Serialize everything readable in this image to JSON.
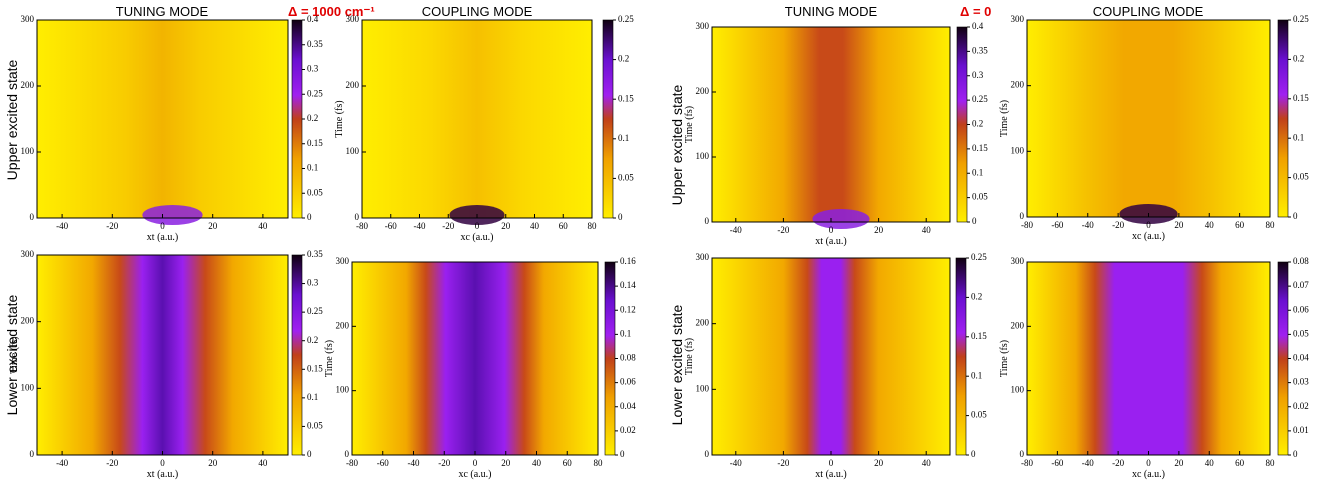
{
  "column_titles": [
    "TUNING MODE",
    "COUPLING MODE",
    "TUNING MODE",
    "COUPLING MODE"
  ],
  "delta_labels": [
    "Δ = 1000 cm⁻¹",
    "Δ = 0"
  ],
  "row_labels": [
    "Upper excited state",
    "Lower excited state",
    "Upper excited state",
    "Lower excited state"
  ],
  "chart_data": [
    {
      "type": "heatmap",
      "xlabel": "xt (a.u.)",
      "xlim": [
        -50,
        50
      ],
      "xticks": [
        -40,
        -20,
        0,
        20,
        40
      ],
      "ylim": [
        0,
        300
      ],
      "yticks": [
        0,
        100,
        200,
        300
      ],
      "clim": [
        0,
        0.4
      ],
      "cticks": [
        0,
        0.05,
        0.1,
        0.15,
        0.2,
        0.25,
        0.3,
        0.35,
        0.4
      ]
    },
    {
      "type": "heatmap",
      "xlabel": "xc (a.u.)",
      "ylabel": "Time (fs)",
      "xlim": [
        -80,
        80
      ],
      "xticks": [
        -80,
        -60,
        -40,
        -20,
        0,
        20,
        40,
        60,
        80
      ],
      "ylim": [
        0,
        300
      ],
      "yticks": [
        0,
        100,
        200,
        300
      ],
      "clim": [
        0,
        0.25
      ],
      "cticks": [
        0,
        0.05,
        0.1,
        0.15,
        0.2,
        0.25
      ]
    },
    {
      "type": "heatmap",
      "xlabel": "xt (a.u.)",
      "ylabel": "Time (fs)",
      "xlim": [
        -50,
        50
      ],
      "xticks": [
        -40,
        -20,
        0,
        20,
        40
      ],
      "ylim": [
        0,
        300
      ],
      "yticks": [
        0,
        100,
        200,
        300
      ],
      "clim": [
        0,
        0.35
      ],
      "cticks": [
        0,
        0.05,
        0.1,
        0.15,
        0.2,
        0.25,
        0.3,
        0.35
      ]
    },
    {
      "type": "heatmap",
      "xlabel": "xc (a.u.)",
      "ylabel": "Time (fs)",
      "xlim": [
        -80,
        80
      ],
      "xticks": [
        -80,
        -60,
        -40,
        -20,
        0,
        20,
        40,
        60,
        80
      ],
      "ylim": [
        0,
        300
      ],
      "yticks": [
        0,
        100,
        200,
        300
      ],
      "clim": [
        0,
        0.16
      ],
      "cticks": [
        0,
        0.02,
        0.04,
        0.06,
        0.08,
        0.1,
        0.12,
        0.14,
        0.16
      ]
    },
    {
      "type": "heatmap",
      "xlabel": "xt (a.u.)",
      "ylabel": "Time (fs)",
      "xlim": [
        -50,
        50
      ],
      "xticks": [
        -40,
        -20,
        0,
        20,
        40
      ],
      "ylim": [
        0,
        300
      ],
      "yticks": [
        0,
        100,
        200,
        300
      ],
      "clim": [
        0,
        0.4
      ],
      "cticks": [
        0,
        0.05,
        0.1,
        0.15,
        0.2,
        0.25,
        0.3,
        0.35,
        0.4
      ]
    },
    {
      "type": "heatmap",
      "xlabel": "xc (a.u.)",
      "ylabel": "Time (fs)",
      "xlim": [
        -80,
        80
      ],
      "xticks": [
        -80,
        -60,
        -40,
        -20,
        0,
        20,
        40,
        60,
        80
      ],
      "ylim": [
        0,
        300
      ],
      "yticks": [
        0,
        100,
        200,
        300
      ],
      "clim": [
        0,
        0.25
      ],
      "cticks": [
        0,
        0.05,
        0.1,
        0.15,
        0.2,
        0.25
      ]
    },
    {
      "type": "heatmap",
      "xlabel": "xt (a.u.)",
      "ylabel": "Time (fs)",
      "xlim": [
        -50,
        50
      ],
      "xticks": [
        -40,
        -20,
        0,
        20,
        40
      ],
      "ylim": [
        0,
        300
      ],
      "yticks": [
        0,
        100,
        200,
        300
      ],
      "clim": [
        0,
        0.25
      ],
      "cticks": [
        0,
        0.05,
        0.1,
        0.15,
        0.2,
        0.25
      ]
    },
    {
      "type": "heatmap",
      "xlabel": "xc (a.u.)",
      "ylabel": "Time (fs)",
      "xlim": [
        -80,
        80
      ],
      "xticks": [
        -80,
        -60,
        -40,
        -20,
        0,
        20,
        40,
        60,
        80
      ],
      "ylim": [
        0,
        300
      ],
      "yticks": [
        0,
        100,
        200,
        300
      ],
      "clim": [
        0,
        0.08
      ],
      "cticks": [
        0,
        0.01,
        0.02,
        0.03,
        0.04,
        0.05,
        0.06,
        0.07,
        0.08
      ]
    }
  ]
}
